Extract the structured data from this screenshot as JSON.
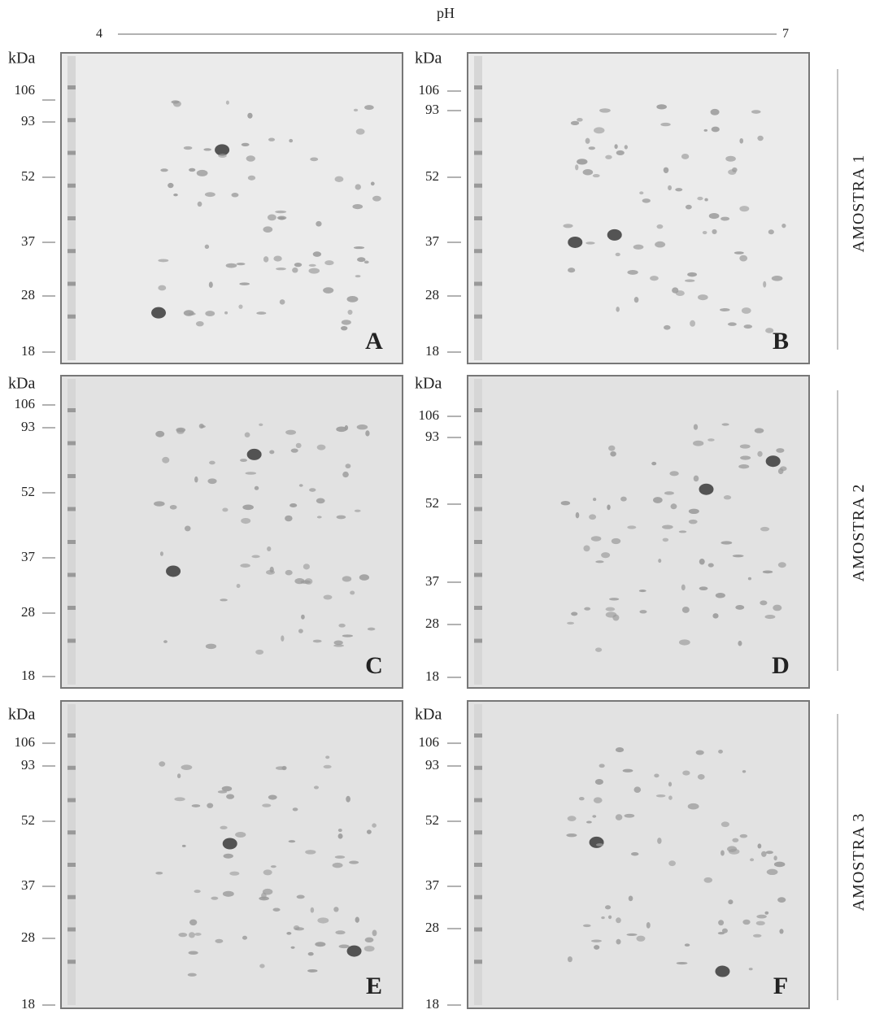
{
  "header": {
    "axis_label": "pH",
    "left_end": "4",
    "right_end": "7"
  },
  "panels": [
    {
      "letter": "A",
      "unit": "kDa",
      "markers": [
        "106",
        "93",
        "52",
        "37",
        "28",
        "18"
      ]
    },
    {
      "letter": "B",
      "unit": "kDa",
      "markers": [
        "106",
        "93",
        "52",
        "37",
        "28",
        "18"
      ]
    },
    {
      "letter": "C",
      "unit": "kDa",
      "markers": [
        "106",
        "93",
        "52",
        "37",
        "28",
        "18"
      ]
    },
    {
      "letter": "D",
      "unit": "kDa",
      "markers": [
        "106",
        "93",
        "52",
        "37",
        "28",
        "18"
      ]
    },
    {
      "letter": "E",
      "unit": "kDa",
      "markers": [
        "106",
        "93",
        "52",
        "37",
        "28",
        "18"
      ]
    },
    {
      "letter": "F",
      "unit": "kDa",
      "markers": [
        "106",
        "93",
        "52",
        "37",
        "28",
        "18"
      ]
    }
  ],
  "samples": [
    "AMOSTRA 1",
    "AMOSTRA 2",
    "AMOSTRA 3"
  ]
}
